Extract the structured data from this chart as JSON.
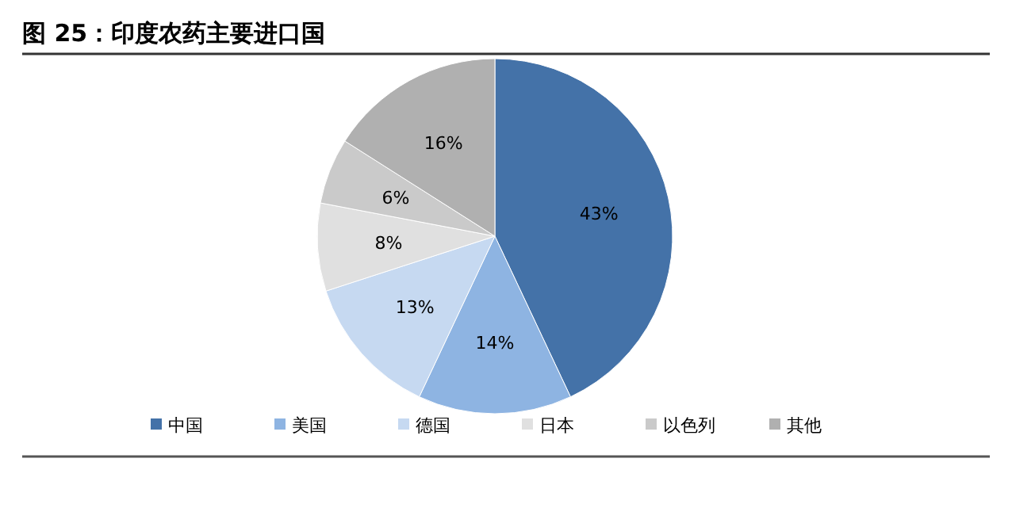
{
  "chart_data": {
    "type": "pie",
    "title": "图 25：印度农药主要进口国",
    "categories": [
      "中国",
      "美国",
      "德国",
      "日本",
      "以色列",
      "其他"
    ],
    "values": [
      43,
      14,
      13,
      8,
      6,
      16
    ],
    "value_labels": [
      "43%",
      "14%",
      "13%",
      "8%",
      "6%",
      "16%"
    ],
    "colors": [
      "#4472a8",
      "#8eb4e2",
      "#c6d9f1",
      "#e0e0e0",
      "#cacaca",
      "#b0b0b0"
    ],
    "legend": "bottom"
  }
}
